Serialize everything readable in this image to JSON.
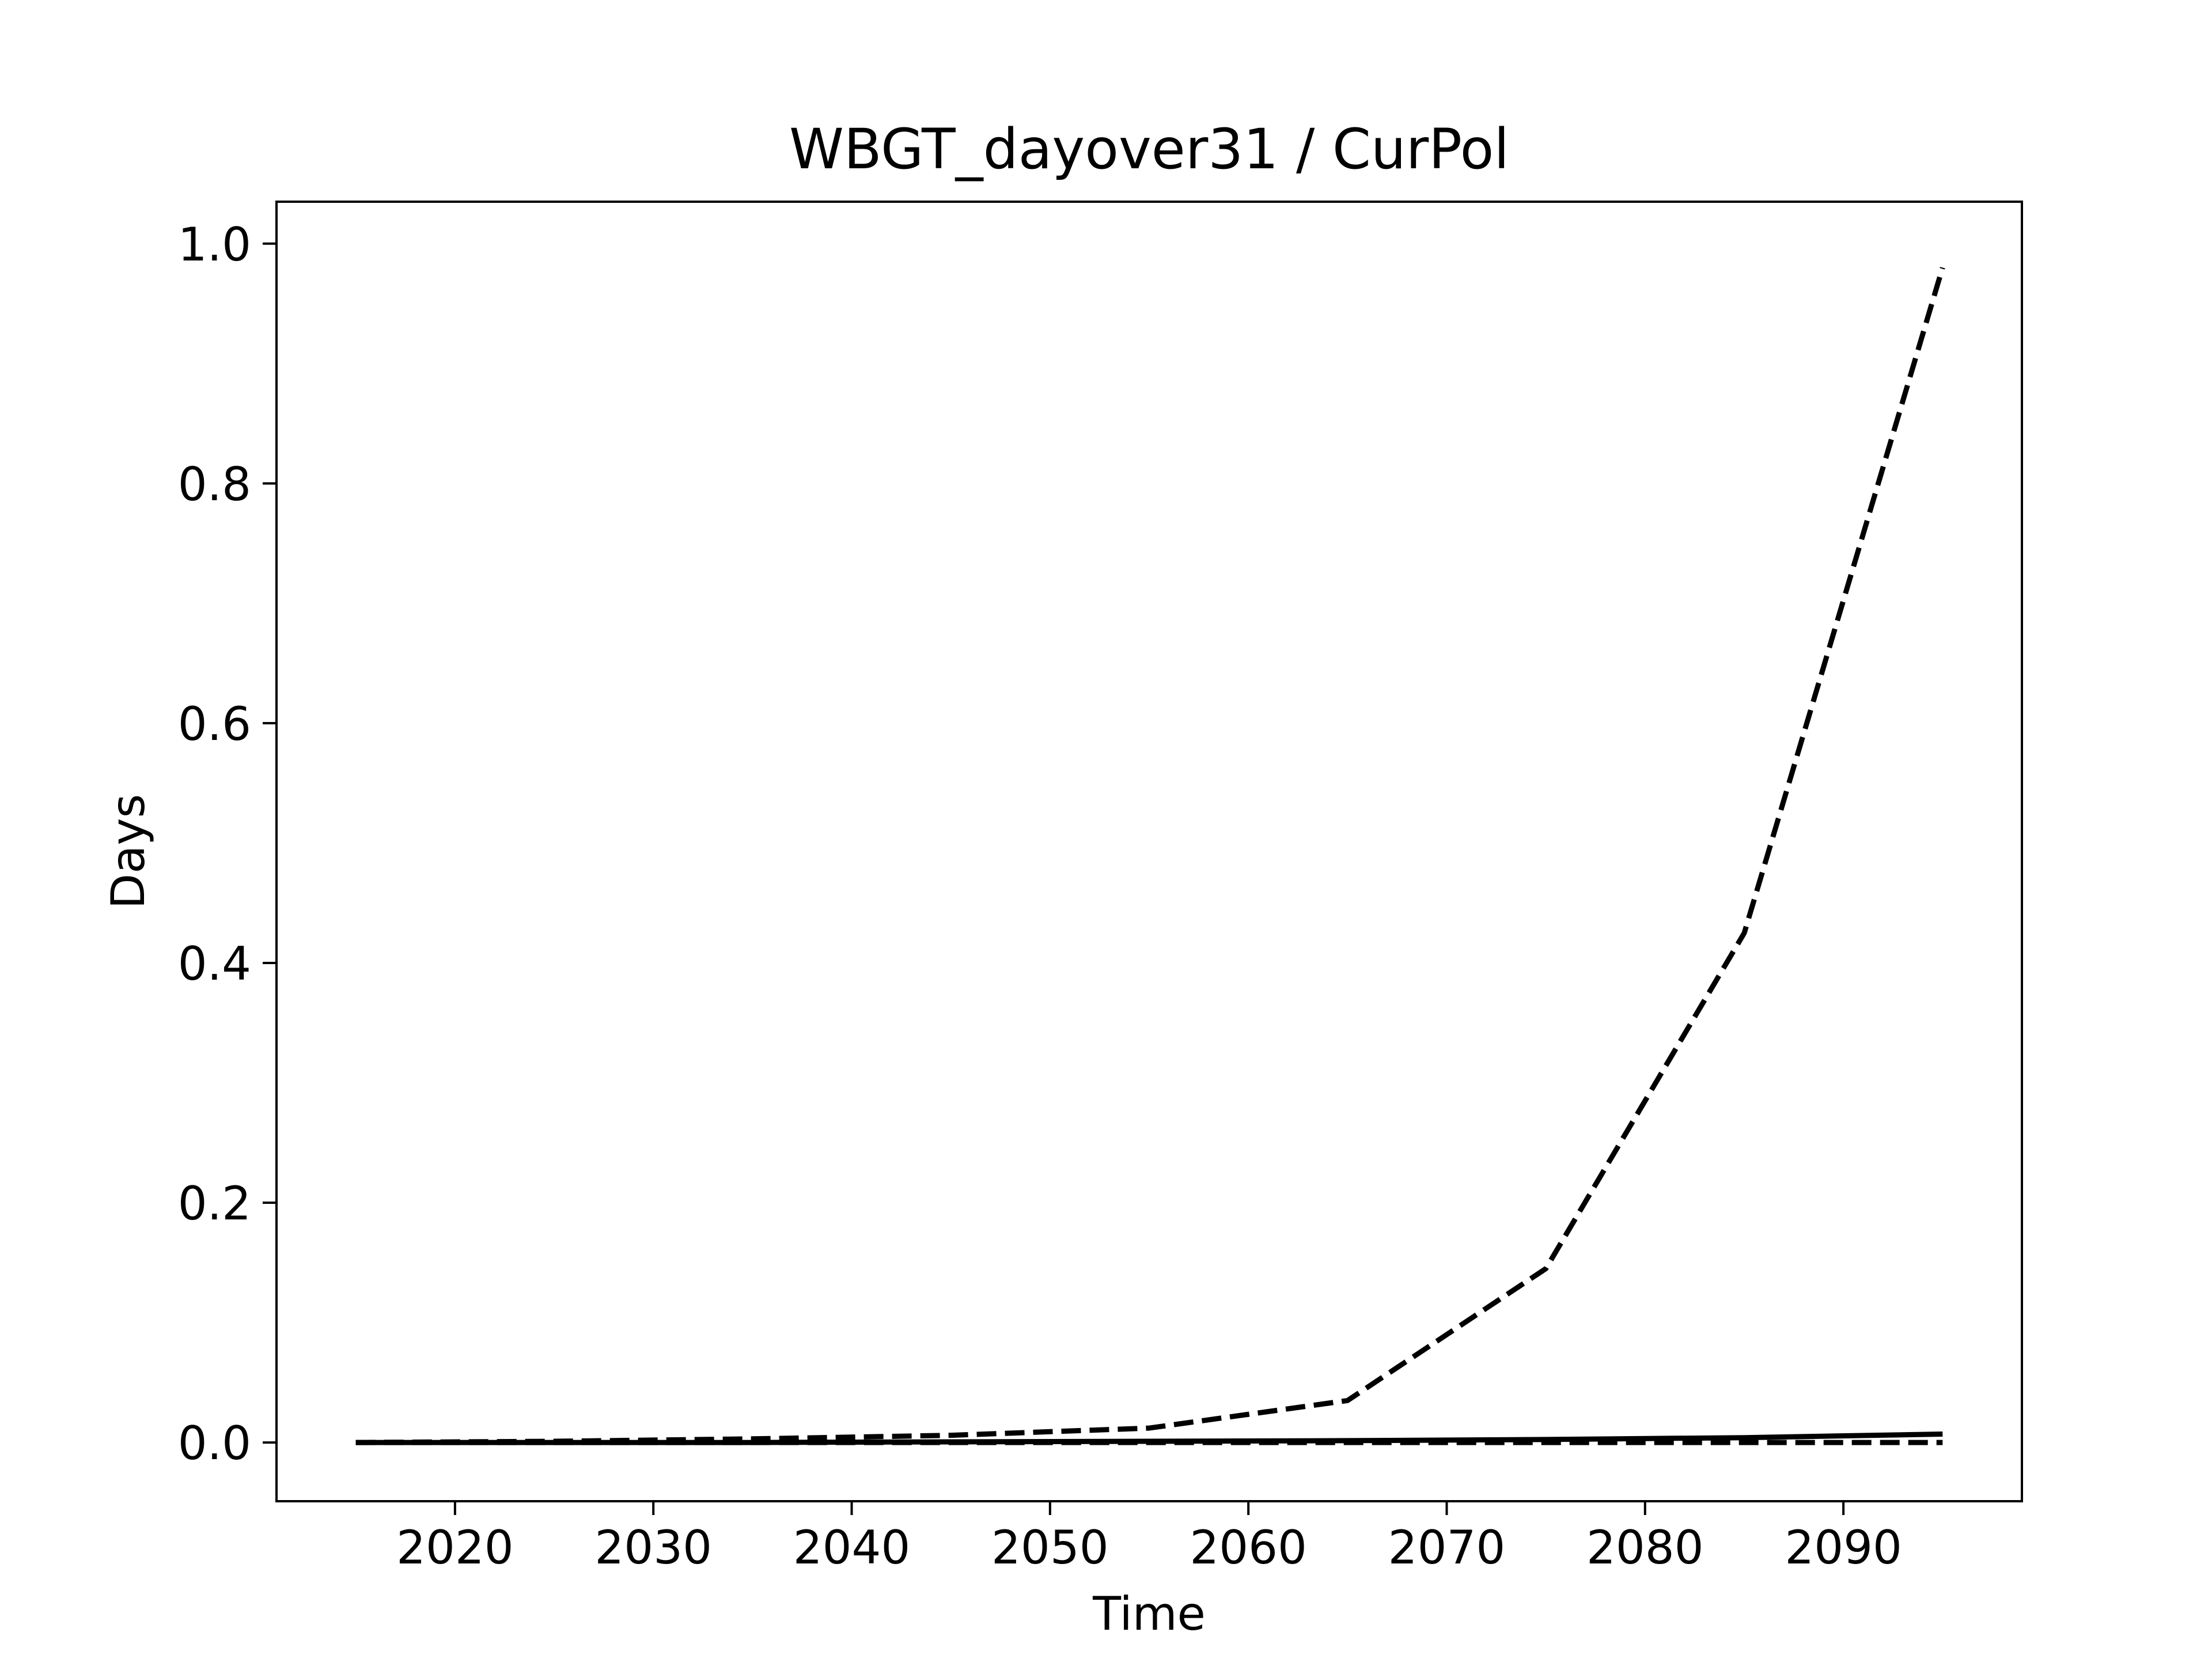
{
  "chart_data": {
    "type": "line",
    "title": "WBGT_dayover31 / CurPol",
    "xlabel": "Time",
    "ylabel": "Days",
    "xlim": [
      2011,
      2099
    ],
    "ylim": [
      -0.049,
      1.035
    ],
    "x_ticks": [
      2020,
      2030,
      2040,
      2050,
      2060,
      2070,
      2080,
      2090
    ],
    "x_tick_labels": [
      "2020",
      "2030",
      "2040",
      "2050",
      "2060",
      "2070",
      "2080",
      "2090"
    ],
    "y_ticks": [
      0.0,
      0.2,
      0.4,
      0.6,
      0.8,
      1.0
    ],
    "y_tick_labels": [
      "0.0",
      "0.2",
      "0.4",
      "0.6",
      "0.8",
      "1.0"
    ],
    "grid": false,
    "legend": "none",
    "series": [
      {
        "style": "dashed",
        "color": "#000000",
        "x": [
          2015,
          2025,
          2035,
          2045,
          2055,
          2065,
          2075,
          2085,
          2095
        ],
        "values": [
          0.0,
          0.001,
          0.003,
          0.006,
          0.012,
          0.035,
          0.145,
          0.425,
          0.98
        ]
      },
      {
        "style": "solid",
        "color": "#000000",
        "x": [
          2015,
          2025,
          2035,
          2045,
          2055,
          2065,
          2075,
          2085,
          2095
        ],
        "values": [
          0.0,
          0.0,
          0.0,
          0.0005,
          0.001,
          0.0015,
          0.0025,
          0.004,
          0.007
        ]
      },
      {
        "style": "dashed",
        "color": "#000000",
        "x": [
          2015,
          2025,
          2035,
          2045,
          2055,
          2065,
          2075,
          2085,
          2095
        ],
        "values": [
          0.0,
          0.0,
          0.0,
          0.0,
          0.0,
          0.0,
          0.0,
          0.0,
          0.0
        ]
      }
    ]
  }
}
